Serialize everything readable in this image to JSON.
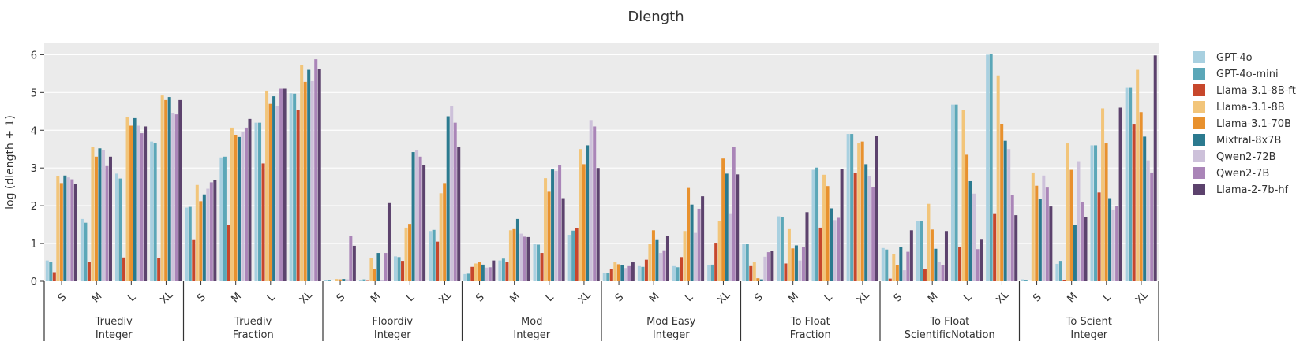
{
  "chart_data": {
    "type": "bar",
    "title": "Dlength",
    "xlabel": "",
    "ylabel": "log (dlength + 1)",
    "ylim": [
      0,
      6.3
    ],
    "yticks": [
      0,
      1,
      2,
      3,
      4,
      5,
      6
    ],
    "grid": true,
    "legend_position": "right",
    "groups": [
      {
        "line1": "Truediv",
        "line2": "Integer"
      },
      {
        "line1": "Truediv",
        "line2": "Fraction"
      },
      {
        "line1": "Floordiv",
        "line2": "Integer"
      },
      {
        "line1": "Mod",
        "line2": "Integer"
      },
      {
        "line1": "Mod Easy",
        "line2": "Integer"
      },
      {
        "line1": "To Float",
        "line2": "Fraction"
      },
      {
        "line1": "To Float",
        "line2": "ScientificNotation"
      },
      {
        "line1": "To Scient",
        "line2": "Integer"
      }
    ],
    "categories": [
      "S",
      "M",
      "L",
      "XL"
    ],
    "series": [
      {
        "name": "GPT-4o",
        "color": "#a8d0e0",
        "values": [
          [
            0.55,
            1.65,
            2.85,
            3.7
          ],
          [
            1.95,
            3.28,
            4.2,
            4.98
          ],
          [
            0.02,
            0.04,
            0.66,
            1.33
          ],
          [
            0.19,
            0.55,
            0.98,
            1.23
          ],
          [
            0.22,
            0.4,
            0.4,
            0.43
          ],
          [
            0.98,
            1.72,
            2.95,
            3.9
          ],
          [
            0.88,
            1.6,
            4.68,
            6.0
          ],
          [
            0.05,
            0.46,
            3.6,
            5.12
          ]
        ]
      },
      {
        "name": "GPT-4o-mini",
        "color": "#5ba7b8",
        "values": [
          [
            0.51,
            1.55,
            2.72,
            3.65
          ],
          [
            1.97,
            3.3,
            4.2,
            4.97
          ],
          [
            0.03,
            0.05,
            0.64,
            1.36
          ],
          [
            0.2,
            0.6,
            0.97,
            1.34
          ],
          [
            0.22,
            0.38,
            0.37,
            0.44
          ],
          [
            0.98,
            1.7,
            3.01,
            3.9
          ],
          [
            0.84,
            1.6,
            4.68,
            6.02
          ],
          [
            0.04,
            0.54,
            3.6,
            5.12
          ]
        ]
      },
      {
        "name": "Llama-3.1-8B-ft",
        "color": "#c7472c",
        "values": [
          [
            0.24,
            0.51,
            0.63,
            0.62
          ],
          [
            1.09,
            1.5,
            3.12,
            4.53
          ],
          [
            0.0,
            0.01,
            0.54,
            1.05
          ],
          [
            0.38,
            0.52,
            0.75,
            1.41
          ],
          [
            0.32,
            0.57,
            0.64,
            1.0
          ],
          [
            0.4,
            0.47,
            1.42,
            2.87
          ],
          [
            0.07,
            0.33,
            0.91,
            1.78
          ],
          [
            0.0,
            0.03,
            2.35,
            4.15
          ]
        ]
      },
      {
        "name": "Llama-3.1-8B",
        "color": "#f2c57a",
        "values": [
          [
            2.78,
            3.55,
            4.35,
            4.92
          ],
          [
            2.55,
            4.07,
            5.05,
            5.72
          ],
          [
            0.06,
            0.61,
            1.42,
            2.33
          ],
          [
            0.47,
            1.35,
            2.73,
            3.5
          ],
          [
            0.5,
            0.98,
            1.33,
            1.6
          ],
          [
            0.5,
            1.38,
            2.82,
            3.65
          ],
          [
            0.72,
            2.05,
            4.53,
            5.45
          ],
          [
            2.88,
            3.65,
            4.58,
            5.6
          ]
        ]
      },
      {
        "name": "Llama-3.1-70B",
        "color": "#e8912e",
        "values": [
          [
            2.6,
            3.3,
            4.12,
            4.8
          ],
          [
            2.12,
            3.88,
            4.7,
            5.28
          ],
          [
            0.05,
            0.32,
            1.52,
            2.6
          ],
          [
            0.5,
            1.38,
            2.37,
            3.1
          ],
          [
            0.45,
            1.35,
            2.47,
            3.25
          ],
          [
            0.08,
            0.87,
            2.52,
            3.7
          ],
          [
            0.42,
            1.37,
            3.35,
            4.17
          ],
          [
            2.53,
            2.95,
            3.65,
            4.48
          ]
        ]
      },
      {
        "name": "Mixtral-8x7B",
        "color": "#2b7a8f",
        "values": [
          [
            2.8,
            3.52,
            4.32,
            4.88
          ],
          [
            2.3,
            3.82,
            4.9,
            5.6
          ],
          [
            0.06,
            0.75,
            3.42,
            4.37
          ],
          [
            0.44,
            1.65,
            2.96,
            3.6
          ],
          [
            0.42,
            1.09,
            2.03,
            2.85
          ],
          [
            0.05,
            0.95,
            1.93,
            3.1
          ],
          [
            0.9,
            0.86,
            2.65,
            3.72
          ],
          [
            2.17,
            1.49,
            2.2,
            3.83
          ]
        ]
      },
      {
        "name": "Qwen2-72B",
        "color": "#cdc1da",
        "values": [
          [
            2.75,
            3.47,
            4.12,
            4.45
          ],
          [
            2.45,
            3.95,
            4.65,
            5.3
          ],
          [
            0.05,
            0.03,
            3.47,
            4.65
          ],
          [
            0.36,
            1.26,
            2.92,
            4.27
          ],
          [
            0.35,
            0.75,
            1.28,
            1.78
          ],
          [
            0.65,
            0.55,
            1.62,
            2.78
          ],
          [
            0.29,
            0.52,
            2.32,
            3.5
          ],
          [
            2.8,
            3.18,
            1.9,
            3.2
          ]
        ]
      },
      {
        "name": "Qwen2-7B",
        "color": "#aa85b8",
        "values": [
          [
            2.7,
            3.05,
            3.92,
            4.42
          ],
          [
            2.62,
            4.07,
            5.1,
            5.88
          ],
          [
            1.2,
            0.75,
            3.3,
            4.2
          ],
          [
            0.37,
            1.18,
            3.08,
            4.1
          ],
          [
            0.4,
            0.82,
            1.92,
            3.55
          ],
          [
            0.77,
            0.9,
            1.68,
            2.5
          ],
          [
            0.78,
            0.42,
            0.85,
            2.28
          ],
          [
            2.48,
            2.1,
            2.0,
            2.88
          ]
        ]
      },
      {
        "name": "Llama-2-7b-hf",
        "color": "#5c426d",
        "values": [
          [
            2.58,
            3.3,
            4.1,
            4.8
          ],
          [
            2.68,
            4.3,
            5.1,
            5.62
          ],
          [
            0.94,
            2.07,
            3.07,
            3.55
          ],
          [
            0.55,
            1.17,
            2.2,
            3.0
          ],
          [
            0.5,
            1.21,
            2.25,
            2.83
          ],
          [
            0.8,
            1.83,
            2.98,
            3.85
          ],
          [
            1.35,
            1.33,
            1.1,
            1.75
          ],
          [
            1.98,
            1.7,
            4.6,
            5.98
          ]
        ]
      }
    ]
  }
}
